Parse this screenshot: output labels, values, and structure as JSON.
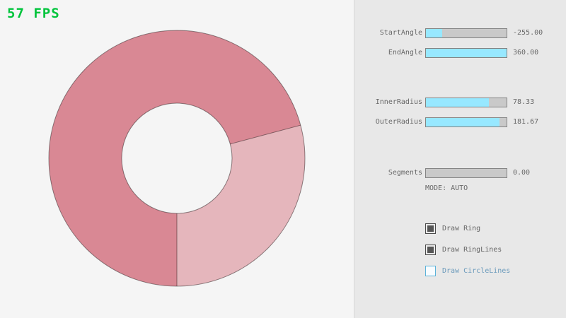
{
  "fps_label": "57 FPS",
  "ring": {
    "start_angle": -255.0,
    "end_angle": 360.0,
    "inner_radius": 78.33,
    "outer_radius": 181.67,
    "segments": 0,
    "mode": "AUTO",
    "color_overlap": "#d98894",
    "color_single": "#e5b6bc",
    "outline_color": "#000000"
  },
  "panel": {
    "sliders": [
      {
        "label": "StartAngle",
        "value": "-255.00",
        "fill_pct": 20
      },
      {
        "label": "EndAngle",
        "value": "360.00",
        "fill_pct": 100
      },
      {
        "label": "InnerRadius",
        "value": "78.33",
        "fill_pct": 78
      },
      {
        "label": "OuterRadius",
        "value": "181.67",
        "fill_pct": 91
      },
      {
        "label": "Segments",
        "value": "0.00",
        "fill_pct": 0
      }
    ],
    "mode_text": "MODE: AUTO",
    "checkboxes": [
      {
        "label": "Draw Ring",
        "checked": true
      },
      {
        "label": "Draw RingLines",
        "checked": true
      },
      {
        "label": "Draw CircleLines",
        "checked": false
      }
    ]
  },
  "colors": {
    "accent_fill": "#97e8ff",
    "slider_track": "#c9c9c9",
    "control_border": "#838383",
    "text": "#686868",
    "fps_green": "#00c43c",
    "focused_border": "#5bb2d9",
    "focused_text": "#6c9bbc",
    "panel_bg": "#e8e8e8",
    "canvas_bg": "#f5f5f5"
  }
}
